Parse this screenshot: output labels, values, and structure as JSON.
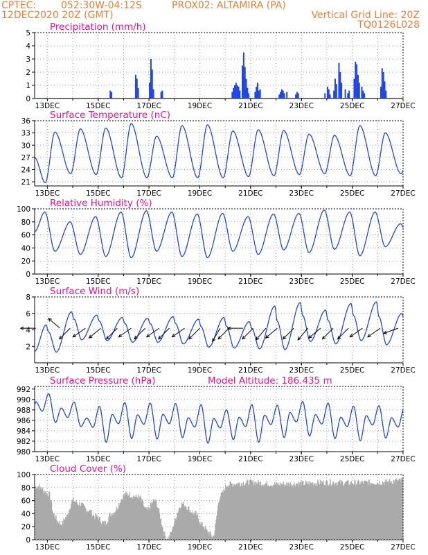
{
  "header": {
    "line1_left": "CPTEC:",
    "line1_coords": "052:30W-04:12S",
    "line1_station": "PROX02: ALTAMIRA (PA)",
    "line2_left": "12DEC2020 20Z (GMT)",
    "line2_right": "Vertical Grid Line: 20Z",
    "line3_right": "TQ0126L028"
  },
  "colors": {
    "header": "#e8803a",
    "title": "#ee1188",
    "series": "#1f45e6",
    "cloud": "#aaaaaa"
  },
  "chart_data": [
    {
      "type": "bar",
      "title": "Precipitation (mm/h)",
      "ylim": [
        0,
        5
      ],
      "yticks": [
        "0",
        "1",
        "2",
        "3",
        "4",
        "5"
      ],
      "xticks": [
        "13DEC",
        "15DEC",
        "17DEC",
        "19DEC",
        "21DEC",
        "23DEC",
        "25DEC",
        "27DEC"
      ],
      "days_shown": 14.5,
      "events": [
        {
          "day": 2.95,
          "value": 0.6
        },
        {
          "day": 3.0,
          "value": 0.5
        },
        {
          "day": 3.95,
          "value": 1.8
        },
        {
          "day": 4.0,
          "value": 1.5
        },
        {
          "day": 4.05,
          "value": 0.8
        },
        {
          "day": 4.5,
          "value": 1.2
        },
        {
          "day": 4.55,
          "value": 3.0
        },
        {
          "day": 4.6,
          "value": 2.2
        },
        {
          "day": 4.65,
          "value": 0.7
        },
        {
          "day": 4.95,
          "value": 0.5
        },
        {
          "day": 5.0,
          "value": 0.6
        },
        {
          "day": 7.75,
          "value": 0.5
        },
        {
          "day": 7.8,
          "value": 0.8
        },
        {
          "day": 7.85,
          "value": 1.0
        },
        {
          "day": 7.9,
          "value": 1.2
        },
        {
          "day": 7.95,
          "value": 1.0
        },
        {
          "day": 8.0,
          "value": 0.9
        },
        {
          "day": 8.05,
          "value": 0.6
        },
        {
          "day": 8.15,
          "value": 2.5
        },
        {
          "day": 8.2,
          "value": 3.5
        },
        {
          "day": 8.25,
          "value": 2.4
        },
        {
          "day": 8.3,
          "value": 1.5
        },
        {
          "day": 8.35,
          "value": 0.8
        },
        {
          "day": 8.4,
          "value": 0.4
        },
        {
          "day": 8.65,
          "value": 0.5
        },
        {
          "day": 8.7,
          "value": 0.9
        },
        {
          "day": 8.75,
          "value": 1.2
        },
        {
          "day": 8.8,
          "value": 0.6
        },
        {
          "day": 8.85,
          "value": 0.7
        },
        {
          "day": 9.6,
          "value": 0.3
        },
        {
          "day": 9.65,
          "value": 0.5
        },
        {
          "day": 9.7,
          "value": 0.7
        },
        {
          "day": 9.75,
          "value": 0.6
        },
        {
          "day": 9.8,
          "value": 0.4
        },
        {
          "day": 9.9,
          "value": 0.5
        },
        {
          "day": 10.25,
          "value": 0.3
        },
        {
          "day": 10.3,
          "value": 0.5
        },
        {
          "day": 10.35,
          "value": 0.4
        },
        {
          "day": 11.4,
          "value": 0.4
        },
        {
          "day": 11.5,
          "value": 0.9
        },
        {
          "day": 11.55,
          "value": 0.7
        },
        {
          "day": 11.6,
          "value": 0.3
        },
        {
          "day": 11.75,
          "value": 0.6
        },
        {
          "day": 11.8,
          "value": 1.5
        },
        {
          "day": 11.85,
          "value": 1.1
        },
        {
          "day": 11.95,
          "value": 2.7
        },
        {
          "day": 12.0,
          "value": 2.0
        },
        {
          "day": 12.05,
          "value": 1.2
        },
        {
          "day": 12.2,
          "value": 0.7
        },
        {
          "day": 12.3,
          "value": 0.4
        },
        {
          "day": 12.35,
          "value": 0.6
        },
        {
          "day": 12.55,
          "value": 1.5
        },
        {
          "day": 12.6,
          "value": 2.8
        },
        {
          "day": 12.65,
          "value": 2.6
        },
        {
          "day": 12.7,
          "value": 1.8
        },
        {
          "day": 12.75,
          "value": 1.2
        },
        {
          "day": 12.85,
          "value": 0.9
        },
        {
          "day": 12.9,
          "value": 0.6
        },
        {
          "day": 12.95,
          "value": 0.4
        },
        {
          "day": 13.6,
          "value": 0.9
        },
        {
          "day": 13.65,
          "value": 2.3
        },
        {
          "day": 13.7,
          "value": 2.0
        },
        {
          "day": 13.75,
          "value": 1.3
        },
        {
          "day": 13.8,
          "value": 0.6
        }
      ]
    },
    {
      "type": "line",
      "title": "Surface Temperature (nC)",
      "ylim": [
        20,
        36
      ],
      "yticks": [
        "21",
        "24",
        "27",
        "30",
        "33",
        "36"
      ],
      "ytick_values": [
        21,
        24,
        27,
        30,
        33,
        36
      ],
      "xticks": [
        "13DEC",
        "15DEC",
        "17DEC",
        "19DEC",
        "21DEC",
        "23DEC",
        "25DEC",
        "27DEC"
      ],
      "days_shown": 14.5,
      "cycle": {
        "min": 22.5,
        "max": 34.0
      },
      "daily": [
        {
          "min": 20.8,
          "max": 33.2
        },
        {
          "min": 23.0,
          "max": 34.0
        },
        {
          "min": 22.8,
          "max": 34.2
        },
        {
          "min": 22.0,
          "max": 35.3
        },
        {
          "min": 22.0,
          "max": 32.2
        },
        {
          "min": 22.0,
          "max": 34.8
        },
        {
          "min": 22.0,
          "max": 35.0
        },
        {
          "min": 22.0,
          "max": 33.5
        },
        {
          "min": 22.3,
          "max": 33.8
        },
        {
          "min": 22.5,
          "max": 33.6
        },
        {
          "min": 22.8,
          "max": 32.7
        },
        {
          "min": 23.0,
          "max": 32.4
        },
        {
          "min": 22.5,
          "max": 34.8
        },
        {
          "min": 22.5,
          "max": 33.0
        },
        {
          "min": 23.0,
          "max": 30.4
        }
      ]
    },
    {
      "type": "line",
      "title": "Relative Humidity (%)",
      "ylim": [
        0,
        100
      ],
      "yticks": [
        "0",
        "20",
        "40",
        "60",
        "80",
        "100"
      ],
      "xticks": [
        "13DEC",
        "15DEC",
        "17DEC",
        "19DEC",
        "21DEC",
        "23DEC",
        "25DEC",
        "27DEC"
      ],
      "days_shown": 14.5,
      "daily": [
        {
          "min": 35,
          "max": 95
        },
        {
          "min": 30,
          "max": 80
        },
        {
          "min": 27,
          "max": 88
        },
        {
          "min": 25,
          "max": 95
        },
        {
          "min": 35,
          "max": 97
        },
        {
          "min": 27,
          "max": 95
        },
        {
          "min": 25,
          "max": 92
        },
        {
          "min": 35,
          "max": 93
        },
        {
          "min": 30,
          "max": 88
        },
        {
          "min": 37,
          "max": 92
        },
        {
          "min": 33,
          "max": 93
        },
        {
          "min": 38,
          "max": 98
        },
        {
          "min": 28,
          "max": 95
        },
        {
          "min": 42,
          "max": 95
        },
        {
          "min": 40,
          "max": 77
        }
      ]
    },
    {
      "type": "line",
      "title": "Surface Wind (m/s)",
      "ylim": [
        0,
        8
      ],
      "yticks": [
        "2",
        "4",
        "6",
        "8"
      ],
      "ytick_values": [
        2,
        4,
        6,
        8
      ],
      "xticks": [
        "13DEC",
        "15DEC",
        "17DEC",
        "19DEC",
        "21DEC",
        "23DEC",
        "25DEC",
        "27DEC"
      ],
      "days_shown": 14.5,
      "daily": [
        {
          "min": 1.3,
          "max": 4.6
        },
        {
          "min": 2.8,
          "max": 6.2
        },
        {
          "min": 2.7,
          "max": 5.8
        },
        {
          "min": 2.5,
          "max": 5.5
        },
        {
          "min": 2.5,
          "max": 5.4
        },
        {
          "min": 2.3,
          "max": 5.6
        },
        {
          "min": 1.9,
          "max": 5.3
        },
        {
          "min": 1.8,
          "max": 5.5
        },
        {
          "min": 1.7,
          "max": 5.0
        },
        {
          "min": 1.6,
          "max": 6.9
        },
        {
          "min": 2.6,
          "max": 7.3
        },
        {
          "min": 2.3,
          "max": 6.4
        },
        {
          "min": 2.7,
          "max": 7.2
        },
        {
          "min": 2.2,
          "max": 7.4
        },
        {
          "min": 2.9,
          "max": 6.0
        }
      ],
      "wind_vectors": [
        {
          "day": 0.05,
          "angle": 180
        },
        {
          "day": 1.0,
          "angle": 140
        },
        {
          "day": 1.4,
          "angle": 225
        },
        {
          "day": 2.0,
          "angle": 215
        },
        {
          "day": 2.6,
          "angle": 220
        },
        {
          "day": 3.25,
          "angle": 225
        },
        {
          "day": 3.8,
          "angle": 215
        },
        {
          "day": 4.35,
          "angle": 225
        },
        {
          "day": 4.9,
          "angle": 215
        },
        {
          "day": 5.3,
          "angle": 225
        },
        {
          "day": 5.9,
          "angle": 215
        },
        {
          "day": 6.5,
          "angle": 225
        },
        {
          "day": 7.3,
          "angle": 240
        },
        {
          "day": 7.65,
          "angle": 225
        },
        {
          "day": 8.2,
          "angle": 180
        },
        {
          "day": 8.6,
          "angle": 225
        },
        {
          "day": 9.1,
          "angle": 230
        },
        {
          "day": 9.55,
          "angle": 220
        },
        {
          "day": 10.2,
          "angle": 225
        },
        {
          "day": 10.75,
          "angle": 230
        },
        {
          "day": 11.25,
          "angle": 220
        },
        {
          "day": 11.75,
          "angle": 225
        },
        {
          "day": 12.35,
          "angle": 225
        },
        {
          "day": 12.9,
          "angle": 215
        },
        {
          "day": 13.6,
          "angle": 215
        },
        {
          "day": 14.3,
          "angle": 200
        }
      ]
    },
    {
      "type": "line",
      "title": "Surface Pressure (hPa)",
      "annotation": "Model Altitude: 186.435 m",
      "ylim": [
        980,
        992.5
      ],
      "yticks": [
        "980",
        "982",
        "984",
        "986",
        "988",
        "990",
        "992"
      ],
      "ytick_values": [
        980,
        982,
        984,
        986,
        988,
        990,
        992
      ],
      "xticks": [
        "13DEC",
        "15DEC",
        "17DEC",
        "19DEC",
        "21DEC",
        "23DEC",
        "25DEC",
        "27DEC"
      ],
      "days_shown": 14.5,
      "daily": [
        {
          "hi": 991.1,
          "lo": 985.6
        },
        {
          "hi": 989.5,
          "lo": 984.8
        },
        {
          "hi": 988.7,
          "lo": 981.8
        },
        {
          "hi": 989.4,
          "lo": 982.5
        },
        {
          "hi": 989.3,
          "lo": 982.4
        },
        {
          "hi": 989.2,
          "lo": 982.7
        },
        {
          "hi": 989.0,
          "lo": 981.6
        },
        {
          "hi": 988.0,
          "lo": 982.3
        },
        {
          "hi": 989.0,
          "lo": 981.8
        },
        {
          "hi": 988.9,
          "lo": 982.7
        },
        {
          "hi": 989.6,
          "lo": 983.0
        },
        {
          "hi": 989.3,
          "lo": 982.5
        },
        {
          "hi": 988.7,
          "lo": 982.1
        },
        {
          "hi": 988.8,
          "lo": 982.6
        },
        {
          "hi": 988.5,
          "lo": 982.1
        }
      ]
    },
    {
      "type": "bar",
      "title": "Cloud Cover (%)",
      "ylim": [
        0,
        100
      ],
      "yticks": [
        "0",
        "20",
        "40",
        "60",
        "80",
        "100"
      ],
      "xticks": [
        "13DEC",
        "15DEC",
        "17DEC",
        "19DEC",
        "21DEC",
        "23DEC",
        "25DEC",
        "27DEC"
      ],
      "days_shown": 14.5,
      "base_level": 92,
      "dips": [
        {
          "day": 0.1,
          "value": 82
        },
        {
          "day": 0.55,
          "value": 70
        },
        {
          "day": 0.75,
          "value": 38
        },
        {
          "day": 0.9,
          "value": 28
        },
        {
          "day": 1.05,
          "value": 24
        },
        {
          "day": 1.2,
          "value": 34
        },
        {
          "day": 1.5,
          "value": 60
        },
        {
          "day": 1.75,
          "value": 55
        },
        {
          "day": 2.1,
          "value": 45
        },
        {
          "day": 2.4,
          "value": 35
        },
        {
          "day": 2.75,
          "value": 25
        },
        {
          "day": 3.0,
          "value": 40
        },
        {
          "day": 3.6,
          "value": 70
        },
        {
          "day": 4.1,
          "value": 65
        },
        {
          "day": 4.4,
          "value": 45
        },
        {
          "day": 4.7,
          "value": 60
        },
        {
          "day": 5.2,
          "value": 2
        },
        {
          "day": 5.8,
          "value": 55
        },
        {
          "day": 6.3,
          "value": 40
        },
        {
          "day": 6.6,
          "value": 22
        },
        {
          "day": 6.8,
          "value": 12
        },
        {
          "day": 7.0,
          "value": 5
        },
        {
          "day": 7.3,
          "value": 68
        },
        {
          "day": 7.6,
          "value": 85
        },
        {
          "day": 8.5,
          "value": 88
        },
        {
          "day": 9.5,
          "value": 85
        },
        {
          "day": 10.5,
          "value": 86
        },
        {
          "day": 11.5,
          "value": 88
        },
        {
          "day": 12.5,
          "value": 87
        },
        {
          "day": 13.5,
          "value": 88
        },
        {
          "day": 14.3,
          "value": 90
        }
      ]
    }
  ]
}
